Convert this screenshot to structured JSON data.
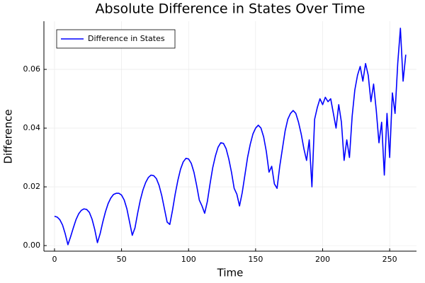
{
  "chart_data": {
    "type": "line",
    "title": "Absolute Difference in States Over Time",
    "xlabel": "Time",
    "ylabel": "Difference",
    "x": [
      0,
      2,
      4,
      6,
      8,
      10,
      12,
      14,
      16,
      18,
      20,
      22,
      24,
      26,
      28,
      30,
      32,
      34,
      36,
      38,
      40,
      42,
      44,
      46,
      48,
      50,
      52,
      54,
      56,
      58,
      60,
      62,
      64,
      66,
      68,
      70,
      72,
      74,
      76,
      78,
      80,
      82,
      84,
      86,
      88,
      90,
      92,
      94,
      96,
      98,
      100,
      102,
      104,
      106,
      108,
      110,
      112,
      114,
      116,
      118,
      120,
      122,
      124,
      126,
      128,
      130,
      132,
      134,
      136,
      138,
      140,
      142,
      144,
      146,
      148,
      150,
      152,
      154,
      156,
      158,
      160,
      162,
      164,
      166,
      168,
      170,
      172,
      174,
      176,
      178,
      180,
      182,
      184,
      186,
      188,
      190,
      192,
      194,
      196,
      198,
      200,
      202,
      204,
      206,
      208,
      210,
      212,
      214,
      216,
      218,
      220,
      222,
      224,
      226,
      228,
      230,
      232,
      234,
      236,
      238,
      240,
      242,
      244,
      246,
      248,
      250,
      252,
      254,
      256,
      258,
      260,
      262
    ],
    "series": [
      {
        "name": "Difference in States",
        "color": "#0000ff",
        "values": [
          0.01,
          0.0097,
          0.0088,
          0.007,
          0.004,
          0.0003,
          0.003,
          0.006,
          0.0088,
          0.0108,
          0.012,
          0.0125,
          0.0123,
          0.0113,
          0.009,
          0.0055,
          0.001,
          0.004,
          0.008,
          0.0115,
          0.0143,
          0.0162,
          0.0174,
          0.0178,
          0.0178,
          0.0172,
          0.0155,
          0.0125,
          0.008,
          0.0035,
          0.006,
          0.011,
          0.0155,
          0.019,
          0.0215,
          0.0232,
          0.024,
          0.0238,
          0.0228,
          0.0205,
          0.017,
          0.0125,
          0.008,
          0.0072,
          0.012,
          0.0175,
          0.0222,
          0.026,
          0.0285,
          0.0297,
          0.0295,
          0.028,
          0.025,
          0.0205,
          0.0155,
          0.0135,
          0.011,
          0.015,
          0.021,
          0.0265,
          0.0305,
          0.0335,
          0.035,
          0.0348,
          0.033,
          0.0295,
          0.025,
          0.0195,
          0.0175,
          0.0135,
          0.018,
          0.024,
          0.03,
          0.0345,
          0.038,
          0.04,
          0.041,
          0.04,
          0.037,
          0.032,
          0.025,
          0.027,
          0.021,
          0.0195,
          0.027,
          0.033,
          0.039,
          0.043,
          0.045,
          0.046,
          0.045,
          0.042,
          0.038,
          0.033,
          0.029,
          0.036,
          0.02,
          0.043,
          0.047,
          0.05,
          0.048,
          0.0505,
          0.049,
          0.05,
          0.045,
          0.04,
          0.048,
          0.042,
          0.029,
          0.036,
          0.03,
          0.044,
          0.053,
          0.058,
          0.061,
          0.056,
          0.062,
          0.058,
          0.049,
          0.055,
          0.046,
          0.035,
          0.042,
          0.024,
          0.045,
          0.03,
          0.052,
          0.045,
          0.062,
          0.074,
          0.056,
          0.065
        ]
      }
    ],
    "xlim": [
      -7.9,
      270
    ],
    "ylim": [
      -0.0019,
      0.0764
    ],
    "xticks": [
      0,
      50,
      100,
      150,
      200,
      250
    ],
    "yticks": [
      {
        "value": 0,
        "label": "0.00"
      },
      {
        "value": 0.02,
        "label": "0.02"
      },
      {
        "value": 0.04,
        "label": "0.04"
      },
      {
        "value": 0.06,
        "label": "0.06"
      }
    ],
    "grid": true,
    "legend": "top-left"
  }
}
